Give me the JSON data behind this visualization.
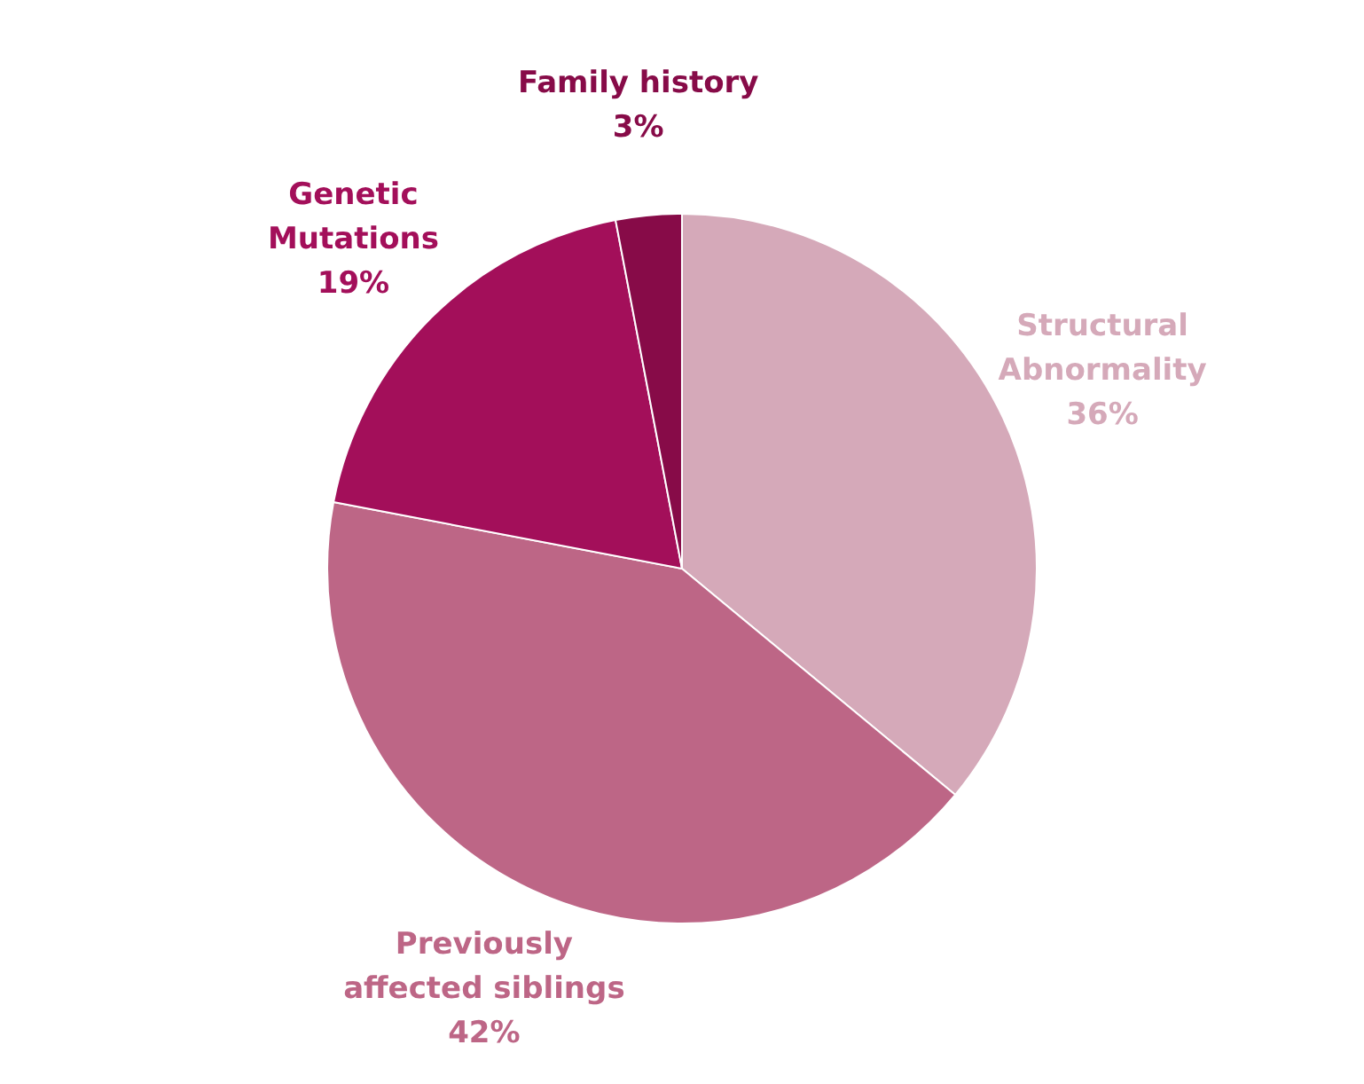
{
  "chart_data": {
    "type": "pie",
    "categories": [
      "Structural\nAbnormality",
      "Previously\naffected siblings",
      "Genetic\nMutations",
      "Family history"
    ],
    "values": [
      36,
      42,
      19,
      3
    ],
    "value_labels": [
      "36%",
      "42%",
      "19%",
      "3%"
    ],
    "colors": [
      "#d5a9b9",
      "#bd6686",
      "#a30f5a",
      "#870b48"
    ],
    "data_labels": true
  }
}
